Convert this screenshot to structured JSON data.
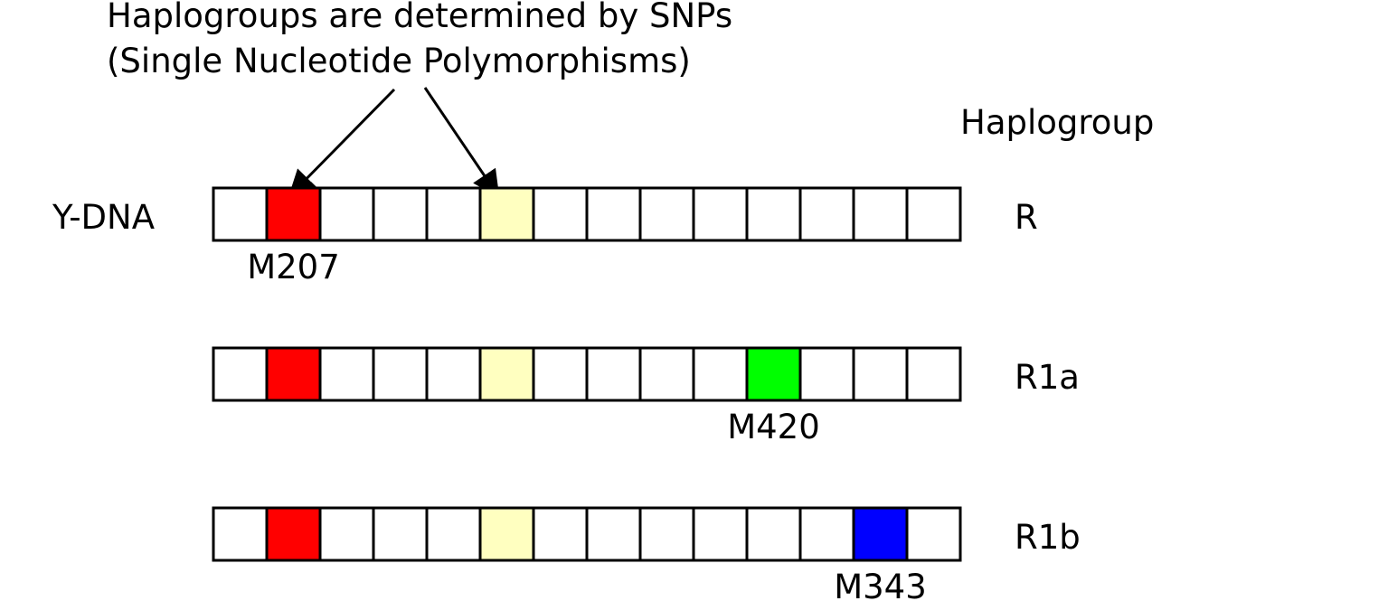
{
  "title_line1": "Haplogroups are determined by SNPs",
  "title_line2": "(Single Nucleotide Polymorphisms)",
  "column_header": "Haplogroup",
  "row_label": "Y-DNA",
  "cell_count": 14,
  "colors": {
    "red": "#ff0000",
    "pale_yellow": "#ffffc0",
    "green": "#00ff00",
    "blue": "#0000ff",
    "stroke": "#000000"
  },
  "rows": [
    {
      "haplogroup": "R",
      "colored_cells": [
        {
          "cell": 2,
          "color": "#ff0000"
        },
        {
          "cell": 6,
          "color": "#ffffc0"
        }
      ],
      "marker": {
        "label": "M207",
        "cell": 2
      }
    },
    {
      "haplogroup": "R1a",
      "colored_cells": [
        {
          "cell": 2,
          "color": "#ff0000"
        },
        {
          "cell": 6,
          "color": "#ffffc0"
        },
        {
          "cell": 11,
          "color": "#00ff00"
        }
      ],
      "marker": {
        "label": "M420",
        "cell": 11
      }
    },
    {
      "haplogroup": "R1b",
      "colored_cells": [
        {
          "cell": 2,
          "color": "#ff0000"
        },
        {
          "cell": 6,
          "color": "#ffffc0"
        },
        {
          "cell": 13,
          "color": "#0000ff"
        }
      ],
      "marker": {
        "label": "M343",
        "cell": 13
      }
    }
  ],
  "arrows": [
    {
      "points_to_cell": 2
    },
    {
      "points_to_cell": 6
    }
  ]
}
